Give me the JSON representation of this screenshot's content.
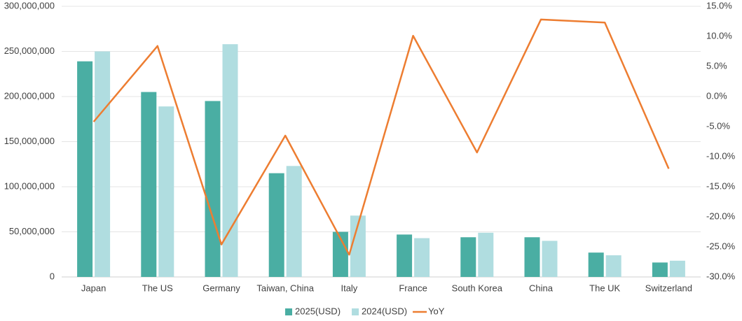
{
  "chart_data": {
    "type": "bar",
    "categories": [
      "Japan",
      "The US",
      "Germany",
      "Taiwan, China",
      "Italy",
      "France",
      "South Korea",
      "China",
      "The UK",
      "Switzerland"
    ],
    "series": [
      {
        "name": "2025(USD)",
        "type": "bar",
        "color": "#4aaea3",
        "values": [
          239000000,
          205000000,
          195000000,
          115000000,
          50000000,
          47000000,
          44000000,
          44000000,
          27000000,
          16000000
        ]
      },
      {
        "name": "2024(USD)",
        "type": "bar",
        "color": "#b0dde0",
        "values": [
          250000000,
          189000000,
          258000000,
          123000000,
          68000000,
          43000000,
          49000000,
          40000000,
          24000000,
          18000000
        ]
      },
      {
        "name": "YoY",
        "type": "line",
        "axis": "y2",
        "color": "#ed7d31",
        "values": [
          -4.2,
          8.4,
          -24.6,
          -6.5,
          -26.3,
          10.1,
          -9.3,
          12.8,
          12.3,
          -12.0
        ]
      }
    ],
    "ylim": [
      0,
      300000000
    ],
    "yticks": [
      0,
      {
        "value": 50000000,
        "label": "50,000,000"
      },
      {
        "value": 100000000,
        "label": "100,000,000"
      },
      {
        "value": 150000000,
        "label": "150,000,000"
      },
      {
        "value": 200000000,
        "label": "200,000,000"
      },
      {
        "value": 250000000,
        "label": "250,000,000"
      },
      {
        "value": 300000000,
        "label": "300,000,000"
      }
    ],
    "y2lim": [
      -30,
      15
    ],
    "y2ticks": [
      {
        "value": -30,
        "label": "-30.0%"
      },
      {
        "value": -25,
        "label": "-25.0%"
      },
      {
        "value": -20,
        "label": "-20.0%"
      },
      {
        "value": -15,
        "label": "-15.0%"
      },
      {
        "value": -10,
        "label": "-10.0%"
      },
      {
        "value": -5,
        "label": "-5.0%"
      },
      {
        "value": 0,
        "label": "0.0%"
      },
      {
        "value": 5,
        "label": "5.0%"
      },
      {
        "value": 10,
        "label": "10.0%"
      },
      {
        "value": 15,
        "label": "15.0%"
      }
    ],
    "grid": true,
    "legend": "bottom"
  }
}
